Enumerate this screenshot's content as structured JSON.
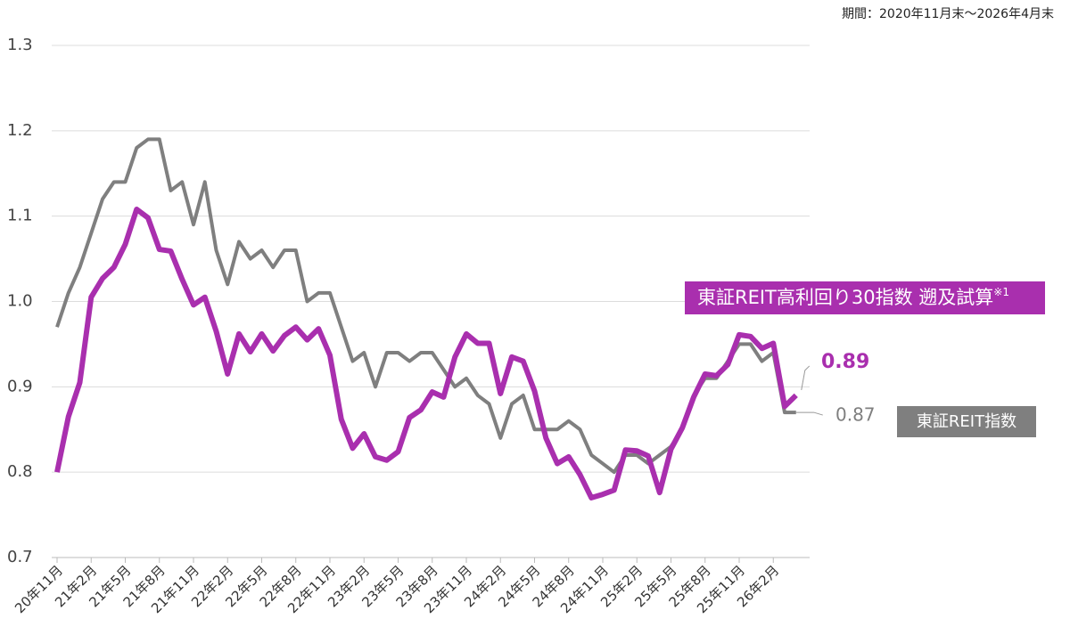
{
  "chart_data": {
    "type": "line",
    "period": "期間：2020年11月末～2026年4月末",
    "categories": [
      "20年11月",
      null,
      null,
      "21年2月",
      null,
      null,
      "21年5月",
      null,
      null,
      "21年8月",
      null,
      null,
      "21年11月",
      null,
      null,
      "22年2月",
      null,
      null,
      "22年5月",
      null,
      null,
      "22年8月",
      null,
      null,
      "22年11月",
      null,
      null,
      "23年2月",
      null,
      null,
      "23年5月",
      null,
      null,
      "23年8月",
      null,
      null,
      "23年11月",
      null,
      null,
      "24年2月",
      null,
      null,
      "24年5月",
      null,
      null,
      "24年8月",
      null,
      null,
      "24年11月",
      null,
      null,
      "25年2月",
      null,
      null,
      "25年5月",
      null,
      null,
      "25年8月",
      null,
      null,
      "25年11月",
      null,
      null,
      "26年2月",
      null,
      null
    ],
    "series": [
      {
        "name": "東証REIT指数",
        "color": "#7f7f7f",
        "values": [
          0.97,
          1.01,
          1.04,
          1.08,
          1.12,
          1.14,
          1.14,
          1.18,
          1.19,
          1.19,
          1.13,
          1.14,
          1.09,
          1.14,
          1.06,
          1.02,
          1.07,
          1.05,
          1.06,
          1.04,
          1.06,
          1.06,
          1.0,
          1.01,
          1.01,
          0.97,
          0.93,
          0.94,
          0.9,
          0.94,
          0.94,
          0.93,
          0.94,
          0.94,
          0.92,
          0.9,
          0.91,
          0.89,
          0.88,
          0.84,
          0.88,
          0.89,
          0.85,
          0.85,
          0.85,
          0.86,
          0.85,
          0.82,
          0.81,
          0.8,
          0.82,
          0.82,
          0.81,
          0.82,
          0.83,
          0.85,
          0.89,
          0.91,
          0.91,
          0.93,
          0.95,
          0.95,
          0.93,
          0.94,
          0.87,
          0.87
        ]
      },
      {
        "name": "東証REIT高利回り30指数 遡及試算",
        "name_note": "※1",
        "color": "#a92fae",
        "values": [
          0.8,
          0.865,
          0.905,
          1.005,
          1.027,
          1.04,
          1.067,
          1.108,
          1.098,
          1.061,
          1.059,
          1.026,
          0.996,
          1.005,
          0.965,
          0.915,
          0.962,
          0.941,
          0.962,
          0.942,
          0.96,
          0.97,
          0.955,
          0.968,
          0.937,
          0.862,
          0.828,
          0.845,
          0.818,
          0.814,
          0.824,
          0.864,
          0.873,
          0.894,
          0.888,
          0.935,
          0.962,
          0.951,
          0.951,
          0.892,
          0.935,
          0.93,
          0.895,
          0.84,
          0.81,
          0.818,
          0.797,
          0.77,
          0.774,
          0.779,
          0.826,
          0.825,
          0.819,
          0.776,
          0.827,
          0.852,
          0.888,
          0.915,
          0.913,
          0.926,
          0.961,
          0.959,
          0.945,
          0.951,
          0.877,
          0.89
        ]
      }
    ],
    "ylim": [
      0.7,
      1.3
    ],
    "yticks": [
      0.7,
      0.8,
      0.9,
      {
        "value": 1,
        "label": "1.0"
      },
      1.1,
      1.2,
      1.3
    ],
    "grid": true
  }
}
